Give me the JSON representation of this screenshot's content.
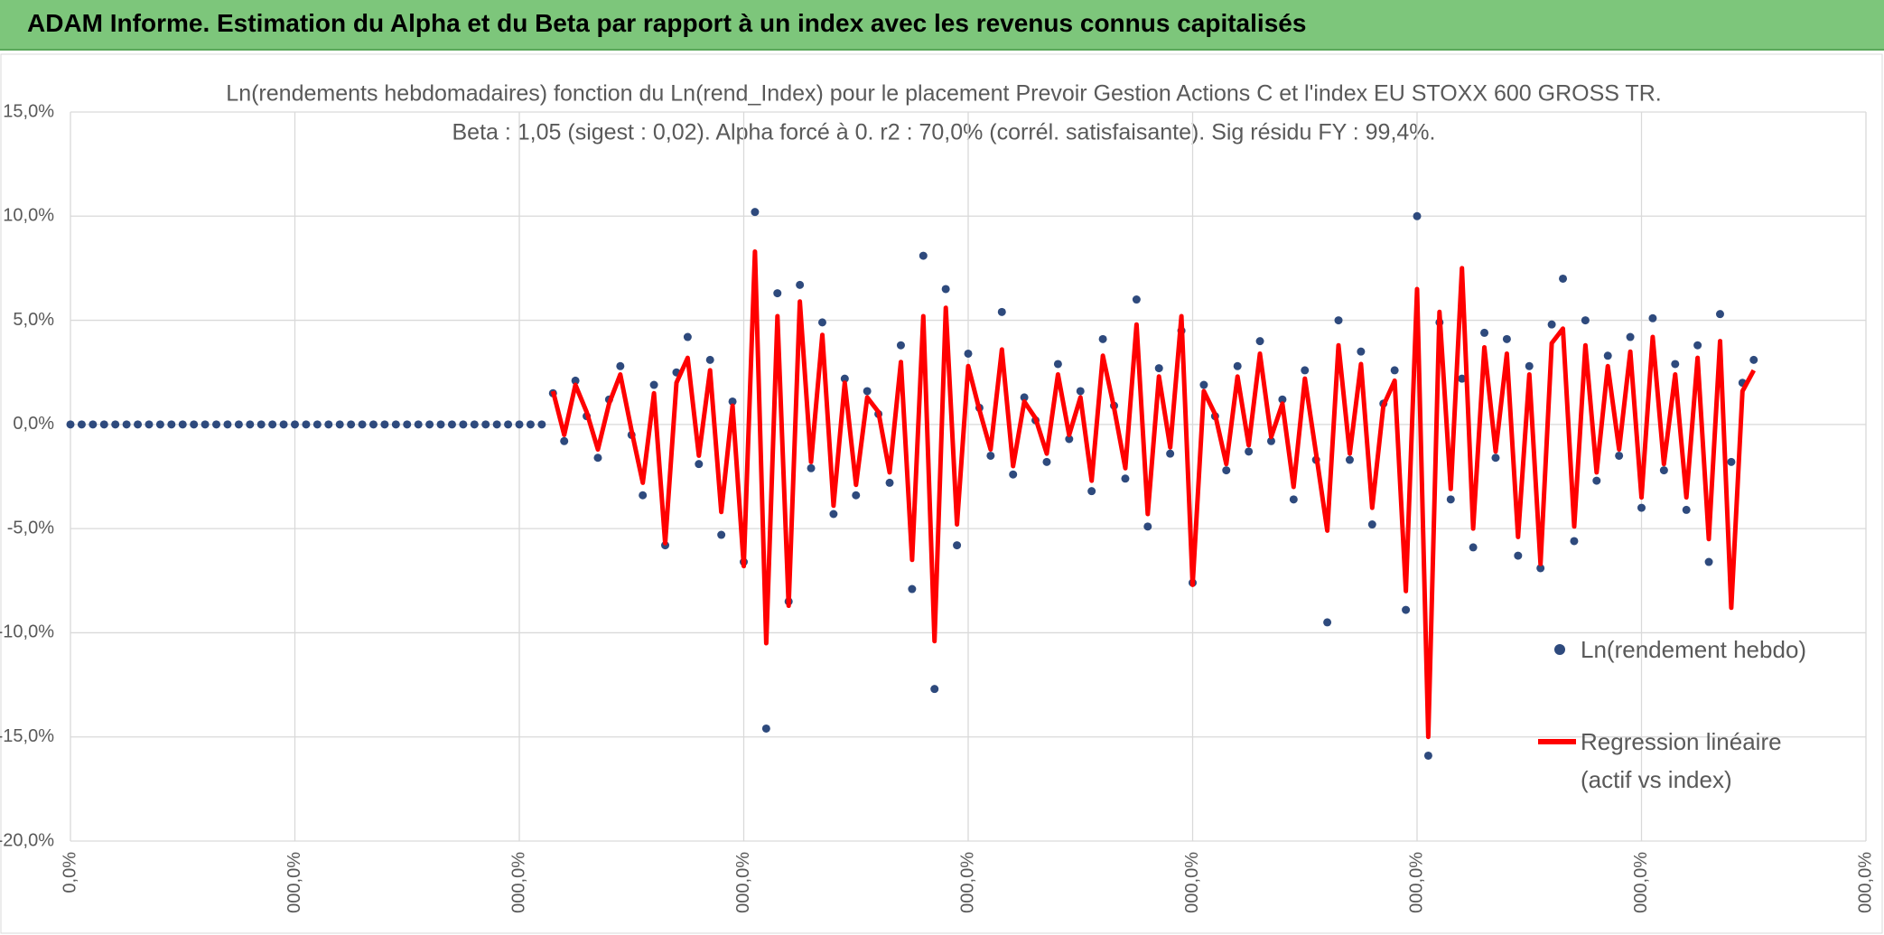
{
  "page_title": "ADAM Informe. Estimation du Alpha et du Beta par rapport à un index avec les revenus connus capitalisés",
  "chart_data": {
    "type": "scatter-line",
    "title": "Ln(rendements hebdomadaires) fonction du Ln(rend_Index) pour le placement Prevoir Gestion Actions C et l'index EU STOXX 600 GROSS TR.",
    "subtitle": "Beta : 1,05 (sigest : 0,02). Alpha forcé à 0. r2 : 70,0% (corrél. satisfaisante). Sig résidu FY : 99,4%.",
    "xlim": [
      0,
      8000
    ],
    "ylim": [
      -20,
      15
    ],
    "xticks": [
      {
        "value": 0,
        "label": "0,0%"
      },
      {
        "value": 1000,
        "label": "000,0%"
      },
      {
        "value": 2000,
        "label": "000,0%"
      },
      {
        "value": 3000,
        "label": "000,0%"
      },
      {
        "value": 4000,
        "label": "000,0%"
      },
      {
        "value": 5000,
        "label": "000,0%"
      },
      {
        "value": 6000,
        "label": "000,0%"
      },
      {
        "value": 7000,
        "label": "000,0%"
      },
      {
        "value": 8000,
        "label": "000,0%"
      }
    ],
    "yticks": [
      {
        "value": -20,
        "label": "-20,0%"
      },
      {
        "value": -15,
        "label": "-15,0%"
      },
      {
        "value": -10,
        "label": "-10,0%"
      },
      {
        "value": -5,
        "label": "-5,0%"
      },
      {
        "value": 0,
        "label": "0,0%"
      },
      {
        "value": 5,
        "label": "5,0%"
      },
      {
        "value": 10,
        "label": "10,0%"
      },
      {
        "value": 15,
        "label": "15,0%"
      }
    ],
    "grid": true,
    "legend": "right",
    "x": [
      0,
      50,
      100,
      150,
      200,
      250,
      300,
      350,
      400,
      450,
      500,
      550,
      600,
      650,
      700,
      750,
      800,
      850,
      900,
      950,
      1000,
      1050,
      1100,
      1150,
      1200,
      1250,
      1300,
      1350,
      1400,
      1450,
      1500,
      1550,
      1600,
      1650,
      1700,
      1750,
      1800,
      1850,
      1900,
      1950,
      2000,
      2050,
      2100,
      2150,
      2200,
      2250,
      2300,
      2350,
      2400,
      2450,
      2500,
      2550,
      2600,
      2650,
      2700,
      2750,
      2800,
      2850,
      2900,
      2950,
      3000,
      3050,
      3100,
      3150,
      3200,
      3250,
      3300,
      3350,
      3400,
      3450,
      3500,
      3550,
      3600,
      3650,
      3700,
      3750,
      3800,
      3850,
      3900,
      3950,
      4000,
      4050,
      4100,
      4150,
      4200,
      4250,
      4300,
      4350,
      4400,
      4450,
      4500,
      4550,
      4600,
      4650,
      4700,
      4750,
      4800,
      4850,
      4900,
      4950,
      5000,
      5050,
      5100,
      5150,
      5200,
      5250,
      5300,
      5350,
      5400,
      5450,
      5500,
      5550,
      5600,
      5650,
      5700,
      5750,
      5800,
      5850,
      5900,
      5950,
      6000,
      6050,
      6100,
      6150,
      6200,
      6250,
      6300,
      6350,
      6400,
      6450,
      6500,
      6550,
      6600,
      6650,
      6700,
      6750,
      6800,
      6850,
      6900,
      6950,
      7000,
      7050,
      7100,
      7150,
      7200,
      7250,
      7300,
      7350,
      7400,
      7450,
      7500
    ],
    "series": [
      {
        "name": "Ln(rendement hebdo)",
        "kind": "scatter",
        "color": "#2e4a7d",
        "values": [
          0,
          0,
          0,
          0,
          0,
          0,
          0,
          0,
          0,
          0,
          0,
          0,
          0,
          0,
          0,
          0,
          0,
          0,
          0,
          0,
          0,
          0,
          0,
          0,
          0,
          0,
          0,
          0,
          0,
          0,
          0,
          0,
          0,
          0,
          0,
          0,
          0,
          0,
          0,
          0,
          0,
          0,
          0,
          1.5,
          -0.8,
          2.1,
          0.4,
          -1.6,
          1.2,
          2.8,
          -0.5,
          -3.4,
          1.9,
          -5.8,
          2.5,
          4.2,
          -1.9,
          3.1,
          -5.3,
          1.1,
          -6.6,
          10.2,
          -14.6,
          6.3,
          -8.5,
          6.7,
          -2.1,
          4.9,
          -4.3,
          2.2,
          -3.4,
          1.6,
          0.5,
          -2.8,
          3.8,
          -7.9,
          8.1,
          -12.7,
          6.5,
          -5.8,
          3.4,
          0.8,
          -1.5,
          5.4,
          -2.4,
          1.3,
          0.2,
          -1.8,
          2.9,
          -0.7,
          1.6,
          -3.2,
          4.1,
          0.9,
          -2.6,
          6.0,
          -4.9,
          2.7,
          -1.4,
          4.5,
          -7.6,
          1.9,
          0.4,
          -2.2,
          2.8,
          -1.3,
          4.0,
          -0.8,
          1.2,
          -3.6,
          2.6,
          -1.7,
          -9.5,
          5.0,
          -1.7,
          3.5,
          -4.8,
          1.0,
          2.6,
          -8.9,
          10.0,
          -15.9,
          4.9,
          -3.6,
          2.2,
          -5.9,
          4.4,
          -1.6,
          4.1,
          -6.3,
          2.8,
          -6.9,
          4.8,
          7.0,
          -5.6,
          5.0,
          -2.7,
          3.3,
          -1.5,
          4.2,
          -4.0,
          5.1,
          -2.2,
          2.9,
          -4.1,
          3.8,
          -6.6,
          5.3,
          -1.8,
          2.0,
          3.1
        ]
      },
      {
        "name": "Regression linéaire (actif vs index)",
        "kind": "line",
        "color": "#ff0000",
        "values": [
          null,
          null,
          null,
          null,
          null,
          null,
          null,
          null,
          null,
          null,
          null,
          null,
          null,
          null,
          null,
          null,
          null,
          null,
          null,
          null,
          null,
          null,
          null,
          null,
          null,
          null,
          null,
          null,
          null,
          null,
          null,
          null,
          null,
          null,
          null,
          null,
          null,
          null,
          null,
          null,
          null,
          null,
          null,
          1.6,
          -0.5,
          1.9,
          0.6,
          -1.2,
          1.0,
          2.4,
          -0.3,
          -2.8,
          1.5,
          -5.7,
          2.0,
          3.2,
          -1.5,
          2.6,
          -4.2,
          0.9,
          -6.8,
          8.3,
          -10.5,
          5.2,
          -8.7,
          5.9,
          -1.8,
          4.3,
          -3.9,
          2.0,
          -2.9,
          1.3,
          0.6,
          -2.3,
          3.0,
          -6.5,
          5.2,
          -10.4,
          5.6,
          -4.8,
          2.8,
          0.7,
          -1.2,
          3.6,
          -2.0,
          1.1,
          0.3,
          -1.4,
          2.4,
          -0.5,
          1.3,
          -2.7,
          3.3,
          0.8,
          -2.1,
          4.8,
          -4.3,
          2.3,
          -1.1,
          5.2,
          -7.7,
          1.6,
          0.5,
          -1.9,
          2.3,
          -1.0,
          3.4,
          -0.6,
          1.0,
          -3.0,
          2.2,
          -1.4,
          -5.1,
          3.8,
          -1.4,
          2.9,
          -4.0,
          0.9,
          2.1,
          -8.0,
          6.5,
          -15.0,
          5.4,
          -3.1,
          7.5,
          -5.0,
          3.7,
          -1.3,
          3.4,
          -5.4,
          2.4,
          -6.7,
          3.9,
          4.6,
          -4.9,
          3.8,
          -2.3,
          2.8,
          -1.2,
          3.5,
          -3.5,
          4.2,
          -1.9,
          2.4,
          -3.5,
          3.2,
          -5.5,
          4.0,
          -8.8,
          1.6,
          2.6
        ]
      }
    ]
  }
}
